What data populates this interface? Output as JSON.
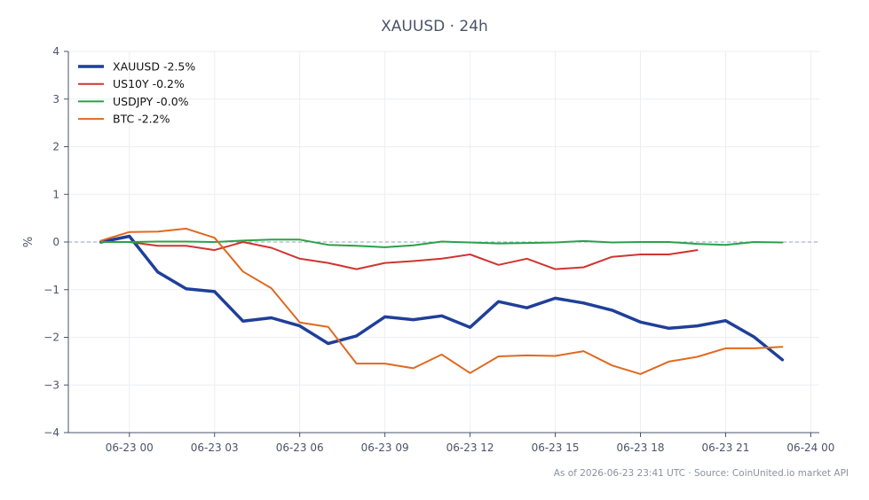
{
  "chart_data": {
    "type": "line",
    "title": "XAUUSD · 24h",
    "ylabel": "%",
    "xlabel": "",
    "ylim": [
      -4,
      4
    ],
    "yticks": [
      "−4",
      "−3",
      "−2",
      "−1",
      "0",
      "1",
      "2",
      "3",
      "4"
    ],
    "xticks": [
      "06-23 00",
      "06-23 03",
      "06-23 06",
      "06-23 09",
      "06-23 12",
      "06-23 15",
      "06-23 18",
      "06-23 21",
      "06-24 00"
    ],
    "grid": true,
    "legend_position": "top-left",
    "zero_line": true,
    "x_hours": [
      -1,
      0,
      1,
      2,
      3,
      4,
      5,
      6,
      7,
      8,
      9,
      10,
      11,
      12,
      13,
      14,
      15,
      16,
      17,
      18,
      19,
      20,
      21,
      22,
      23
    ],
    "series": [
      {
        "name": "XAUUSD -2.5%",
        "color": "#1f3f99",
        "width": 3.5,
        "values": [
          0.0,
          0.12,
          -0.63,
          -0.98,
          -1.04,
          -1.66,
          -1.59,
          -1.76,
          -2.13,
          -1.97,
          -1.57,
          -1.63,
          -1.55,
          -1.79,
          -1.25,
          -1.38,
          -1.18,
          -1.28,
          -1.43,
          -1.68,
          -1.81,
          -1.76,
          -1.65,
          -1.99,
          -2.47
        ]
      },
      {
        "name": "US10Y -0.2%",
        "color": "#d03530",
        "width": 2,
        "values": [
          0.0,
          0.0,
          -0.08,
          -0.08,
          -0.17,
          0.0,
          -0.12,
          -0.35,
          -0.44,
          -0.57,
          -0.44,
          -0.4,
          -0.35,
          -0.26,
          -0.48,
          -0.35,
          -0.57,
          -0.53,
          -0.31,
          -0.26,
          -0.26,
          -0.17
        ]
      },
      {
        "name": "USDJPY -0.0%",
        "color": "#2aa14a",
        "width": 2,
        "values": [
          0.0,
          0.0,
          0.01,
          0.01,
          0.0,
          0.03,
          0.05,
          0.05,
          -0.06,
          -0.08,
          -0.11,
          -0.07,
          0.01,
          -0.01,
          -0.03,
          -0.02,
          -0.01,
          0.02,
          -0.01,
          0.0,
          0.0,
          -0.04,
          -0.06,
          0.0,
          -0.01
        ]
      },
      {
        "name": "BTC -2.2%",
        "color": "#e0691f",
        "width": 2,
        "values": [
          0.03,
          0.21,
          0.22,
          0.28,
          0.09,
          -0.62,
          -0.97,
          -1.69,
          -1.78,
          -2.55,
          -2.55,
          -2.65,
          -2.36,
          -2.75,
          -2.4,
          -2.38,
          -2.39,
          -2.29,
          -2.59,
          -2.77,
          -2.51,
          -2.41,
          -2.23,
          -2.23,
          -2.2
        ]
      }
    ]
  },
  "footer": "As of 2026-06-23 23:41 UTC · Source: CoinUnited.io market API",
  "colors": {
    "axis": "#4a5468",
    "grid": "#eceef2",
    "zero": "#8fa4c0"
  }
}
